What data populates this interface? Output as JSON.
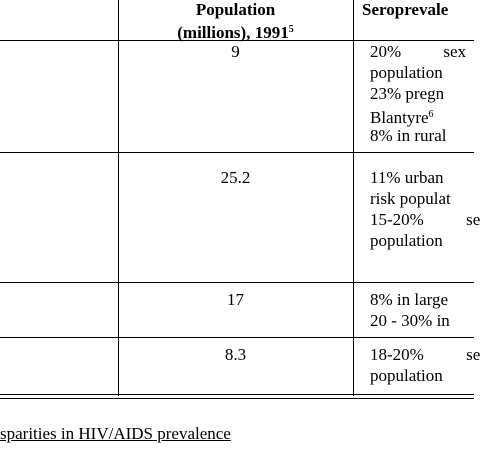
{
  "table": {
    "header": {
      "population": "Population",
      "population_unit": "(millions), 1991",
      "population_note": "5",
      "seroprevalence": "Seroprevale"
    },
    "rows": [
      {
        "population": "9",
        "lines": [
          {
            "text": "20% sex",
            "spaced": true
          },
          {
            "text": "population"
          },
          {
            "text": "23% pregn"
          },
          {
            "text": "Blantyre",
            "note": "6"
          },
          {
            "text": "8% in rural"
          }
        ]
      },
      {
        "population": "25.2",
        "lines": [
          {
            "text": "11% urban"
          },
          {
            "text": "risk populat"
          },
          {
            "text": "15-20% se",
            "spaced": true
          },
          {
            "text": "population"
          }
        ]
      },
      {
        "population": "17",
        "lines": [
          {
            "text": "8% in large"
          },
          {
            "text": "20 - 30% in"
          }
        ]
      },
      {
        "population": "8.3",
        "lines": [
          {
            "text": "18-20% se",
            "spaced": true
          },
          {
            "text": "population"
          }
        ]
      }
    ]
  },
  "caption": "sparities in HIV/AIDS prevalence"
}
